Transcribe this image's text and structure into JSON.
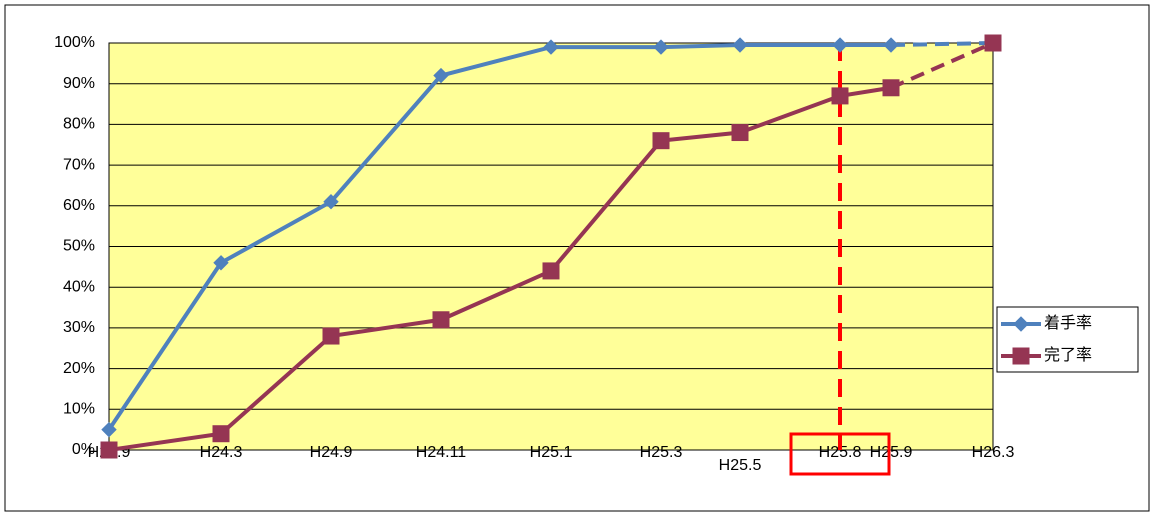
{
  "chart_data": {
    "type": "line",
    "categories": [
      "H23.9",
      "H24.3",
      "H24.9",
      "H24.11",
      "H25.1",
      "H25.3",
      "H25.5",
      "H25.8",
      "H25.9",
      "H26.3"
    ],
    "series": [
      {
        "name": "着手率",
        "color": "#4f81bd",
        "marker": "diamond",
        "dashed_from_index": 8,
        "values": [
          5,
          46,
          61,
          92,
          99,
          99,
          99.5,
          99.5,
          99.5,
          100
        ]
      },
      {
        "name": "完了率",
        "color": "#953553",
        "marker": "square",
        "dashed_from_index": 8,
        "values": [
          0,
          4,
          28,
          32,
          44,
          76,
          78,
          87,
          89,
          100
        ]
      }
    ],
    "ylim": [
      0,
      100
    ],
    "yticks": [
      {
        "value": 0,
        "label": "0%"
      },
      {
        "value": 10,
        "label": "10%"
      },
      {
        "value": 20,
        "label": "20%"
      },
      {
        "value": 30,
        "label": "30%"
      },
      {
        "value": 40,
        "label": "40%"
      },
      {
        "value": 50,
        "label": "50%"
      },
      {
        "value": 60,
        "label": "60%"
      },
      {
        "value": 70,
        "label": "70%"
      },
      {
        "value": 80,
        "label": "80%"
      },
      {
        "value": 90,
        "label": "90%"
      },
      {
        "value": 100,
        "label": "100%"
      }
    ],
    "grid": true,
    "highlight_index": 7,
    "legend": "right",
    "plot_background": "#ffff99"
  }
}
